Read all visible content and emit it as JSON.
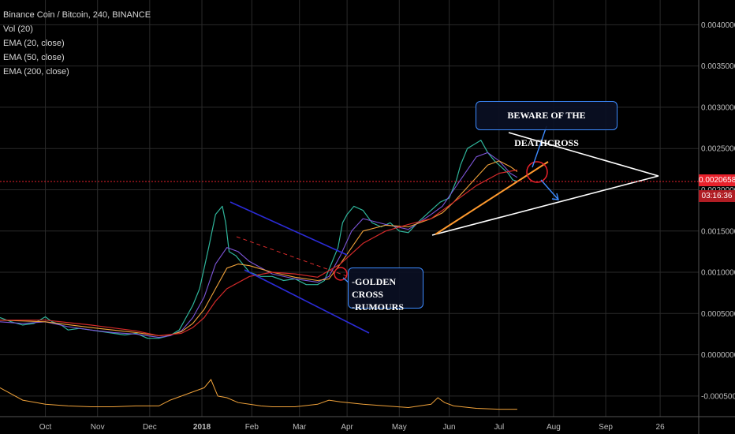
{
  "legend": {
    "symbol": "Binance Coin / Bitcoin, 240, BINANCE",
    "indicators": [
      "Vol (20)",
      "EMA (20, close)",
      "EMA (50, close)",
      "EMA (200, close)"
    ]
  },
  "current_price": {
    "value": "0.0020658",
    "countdown": "03:16:36",
    "color": "#e8212b"
  },
  "annotations": {
    "deathcross": "BEWARE OF THE DEATHCROSS",
    "golden_cross": "-GOLDEN CROSS",
    "rumours": "-RUMOURS"
  },
  "colors": {
    "price": "#2fb59b",
    "ema20": "#7d55d8",
    "ema50": "#f0a23a",
    "ema200": "#d42a2a",
    "channel": "#2b2bd6",
    "annotation_border": "#3d8bff",
    "trendline": "#ff9a2e"
  },
  "chart_data": {
    "type": "line",
    "title": "Binance Coin / Bitcoin, 240, BINANCE",
    "y_ticks": [
      "0.0040000",
      "0.0035000",
      "0.0030000",
      "0.0025000",
      "0.0020000",
      "0.0015000",
      "0.0010000",
      "0.0005000",
      "0.0000000",
      "-0.0005000"
    ],
    "y_tick_values": [
      0.004,
      0.0035,
      0.003,
      0.0025,
      0.002,
      0.0015,
      0.001,
      0.0005,
      0.0,
      -0.0005
    ],
    "ylim": [
      -0.00075,
      0.0043
    ],
    "x_ticks": [
      "Oct",
      "Nov",
      "Dec",
      "2018",
      "Feb",
      "Mar",
      "Apr",
      "May",
      "Jun",
      "Jul",
      "Aug",
      "Sep",
      "26"
    ],
    "x_tick_index": [
      2,
      4.3,
      6.6,
      8.9,
      11.1,
      13.2,
      15.3,
      17.6,
      19.8,
      22.0,
      24.4,
      26.7,
      29.1
    ],
    "xlim": [
      0,
      30.8
    ],
    "grid": true,
    "series": [
      {
        "name": "Binance Coin / Bitcoin",
        "x": [
          0,
          0.5,
          1,
          1.5,
          2,
          2.3,
          2.7,
          3,
          3.5,
          4,
          4.5,
          5,
          5.5,
          6,
          6.5,
          7,
          7.3,
          7.6,
          7.9,
          8.2,
          8.5,
          8.8,
          9.0,
          9.2,
          9.5,
          9.8,
          9.95,
          10.1,
          10.4,
          10.7,
          11.0,
          11.5,
          12,
          12.5,
          13,
          13.5,
          14,
          14.3,
          14.6,
          14.9,
          15.1,
          15.3,
          15.6,
          16.0,
          16.4,
          16.8,
          17.2,
          17.6,
          18.0,
          18.4,
          18.8,
          19.0,
          19.4,
          19.8,
          20.1,
          20.3,
          20.6,
          20.9,
          21.2,
          21.5,
          21.8,
          22.0,
          22.2,
          22.4,
          22.6,
          22.8
        ],
        "y": [
          0.00045,
          0.0004,
          0.00036,
          0.00038,
          0.00046,
          0.0004,
          0.00036,
          0.0003,
          0.00032,
          0.0003,
          0.00028,
          0.00026,
          0.00024,
          0.00026,
          0.0002,
          0.0002,
          0.00022,
          0.00025,
          0.0003,
          0.00045,
          0.0006,
          0.0008,
          0.00105,
          0.0013,
          0.0017,
          0.0018,
          0.0016,
          0.00125,
          0.0012,
          0.0011,
          0.001,
          0.00095,
          0.00095,
          0.0009,
          0.00092,
          0.00085,
          0.00085,
          0.0009,
          0.0011,
          0.0013,
          0.0016,
          0.0017,
          0.0018,
          0.00175,
          0.0016,
          0.00155,
          0.0016,
          0.0015,
          0.00148,
          0.0016,
          0.0017,
          0.00175,
          0.00185,
          0.0019,
          0.0021,
          0.0023,
          0.0025,
          0.00255,
          0.0026,
          0.00245,
          0.00235,
          0.0023,
          0.00225,
          0.0022,
          0.00212,
          0.0021
        ]
      },
      {
        "name": "EMA (20, close)",
        "x": [
          0,
          1,
          2,
          3,
          4,
          5,
          6,
          7,
          7.5,
          8,
          8.5,
          9,
          9.5,
          10,
          10.5,
          11,
          12,
          13,
          14,
          14.5,
          15,
          15.5,
          16,
          17,
          18,
          19,
          19.5,
          20,
          20.5,
          21,
          21.5,
          22,
          22.5,
          22.8
        ],
        "y": [
          0.0004,
          0.00038,
          0.0004,
          0.00034,
          0.0003,
          0.00027,
          0.00025,
          0.00021,
          0.00023,
          0.00029,
          0.00045,
          0.0007,
          0.0011,
          0.0013,
          0.00125,
          0.00113,
          0.00098,
          0.00092,
          0.00088,
          0.00095,
          0.0012,
          0.0015,
          0.00165,
          0.00158,
          0.00152,
          0.0017,
          0.0018,
          0.002,
          0.0022,
          0.0024,
          0.00245,
          0.00235,
          0.0022,
          0.00215
        ]
      },
      {
        "name": "EMA (50, close)",
        "x": [
          0,
          2,
          4,
          6,
          7,
          7.5,
          8,
          8.5,
          9,
          9.5,
          10,
          10.5,
          11,
          12,
          13,
          14,
          14.5,
          15,
          15.5,
          16,
          17,
          18,
          19,
          19.5,
          20,
          20.5,
          21,
          21.5,
          22,
          22.5,
          22.8
        ],
        "y": [
          0.00042,
          0.0004,
          0.00033,
          0.00027,
          0.00023,
          0.00024,
          0.00028,
          0.00038,
          0.00055,
          0.0008,
          0.00105,
          0.0011,
          0.00108,
          0.001,
          0.00094,
          0.0009,
          0.00092,
          0.0011,
          0.0013,
          0.0015,
          0.00157,
          0.00155,
          0.00165,
          0.00172,
          0.00185,
          0.002,
          0.00215,
          0.0023,
          0.00235,
          0.00228,
          0.00222
        ]
      },
      {
        "name": "EMA (200, close)",
        "x": [
          0,
          2,
          4,
          6,
          7,
          8,
          8.5,
          9,
          9.5,
          10,
          11,
          12,
          13,
          14,
          15,
          16,
          17,
          18,
          19,
          20,
          21,
          22,
          22.8
        ],
        "y": [
          0.00042,
          0.00042,
          0.00036,
          0.00029,
          0.00023,
          0.00026,
          0.00033,
          0.00045,
          0.00065,
          0.0008,
          0.00095,
          0.001,
          0.00098,
          0.00094,
          0.0011,
          0.00135,
          0.0015,
          0.00158,
          0.00165,
          0.00185,
          0.00205,
          0.0022,
          0.00224
        ]
      }
    ],
    "volume_oscillator": {
      "x": [
        0,
        1,
        2,
        3,
        4,
        5,
        6,
        7,
        7.5,
        8,
        8.5,
        9,
        9.3,
        9.6,
        10,
        10.5,
        11,
        11.5,
        12,
        13,
        14,
        14.5,
        15,
        16,
        17,
        18,
        19,
        19.3,
        19.6,
        20,
        21,
        22,
        22.8
      ],
      "y": [
        -0.0004,
        -0.00055,
        -0.0006,
        -0.00062,
        -0.00063,
        -0.00063,
        -0.00062,
        -0.00062,
        -0.00055,
        -0.0005,
        -0.00045,
        -0.0004,
        -0.0003,
        -0.0005,
        -0.00052,
        -0.00058,
        -0.0006,
        -0.00062,
        -0.00063,
        -0.00063,
        -0.0006,
        -0.00055,
        -0.00057,
        -0.0006,
        -0.00062,
        -0.00064,
        -0.0006,
        -0.00052,
        -0.00058,
        -0.00062,
        -0.00065,
        -0.00066,
        -0.00066
      ]
    }
  }
}
